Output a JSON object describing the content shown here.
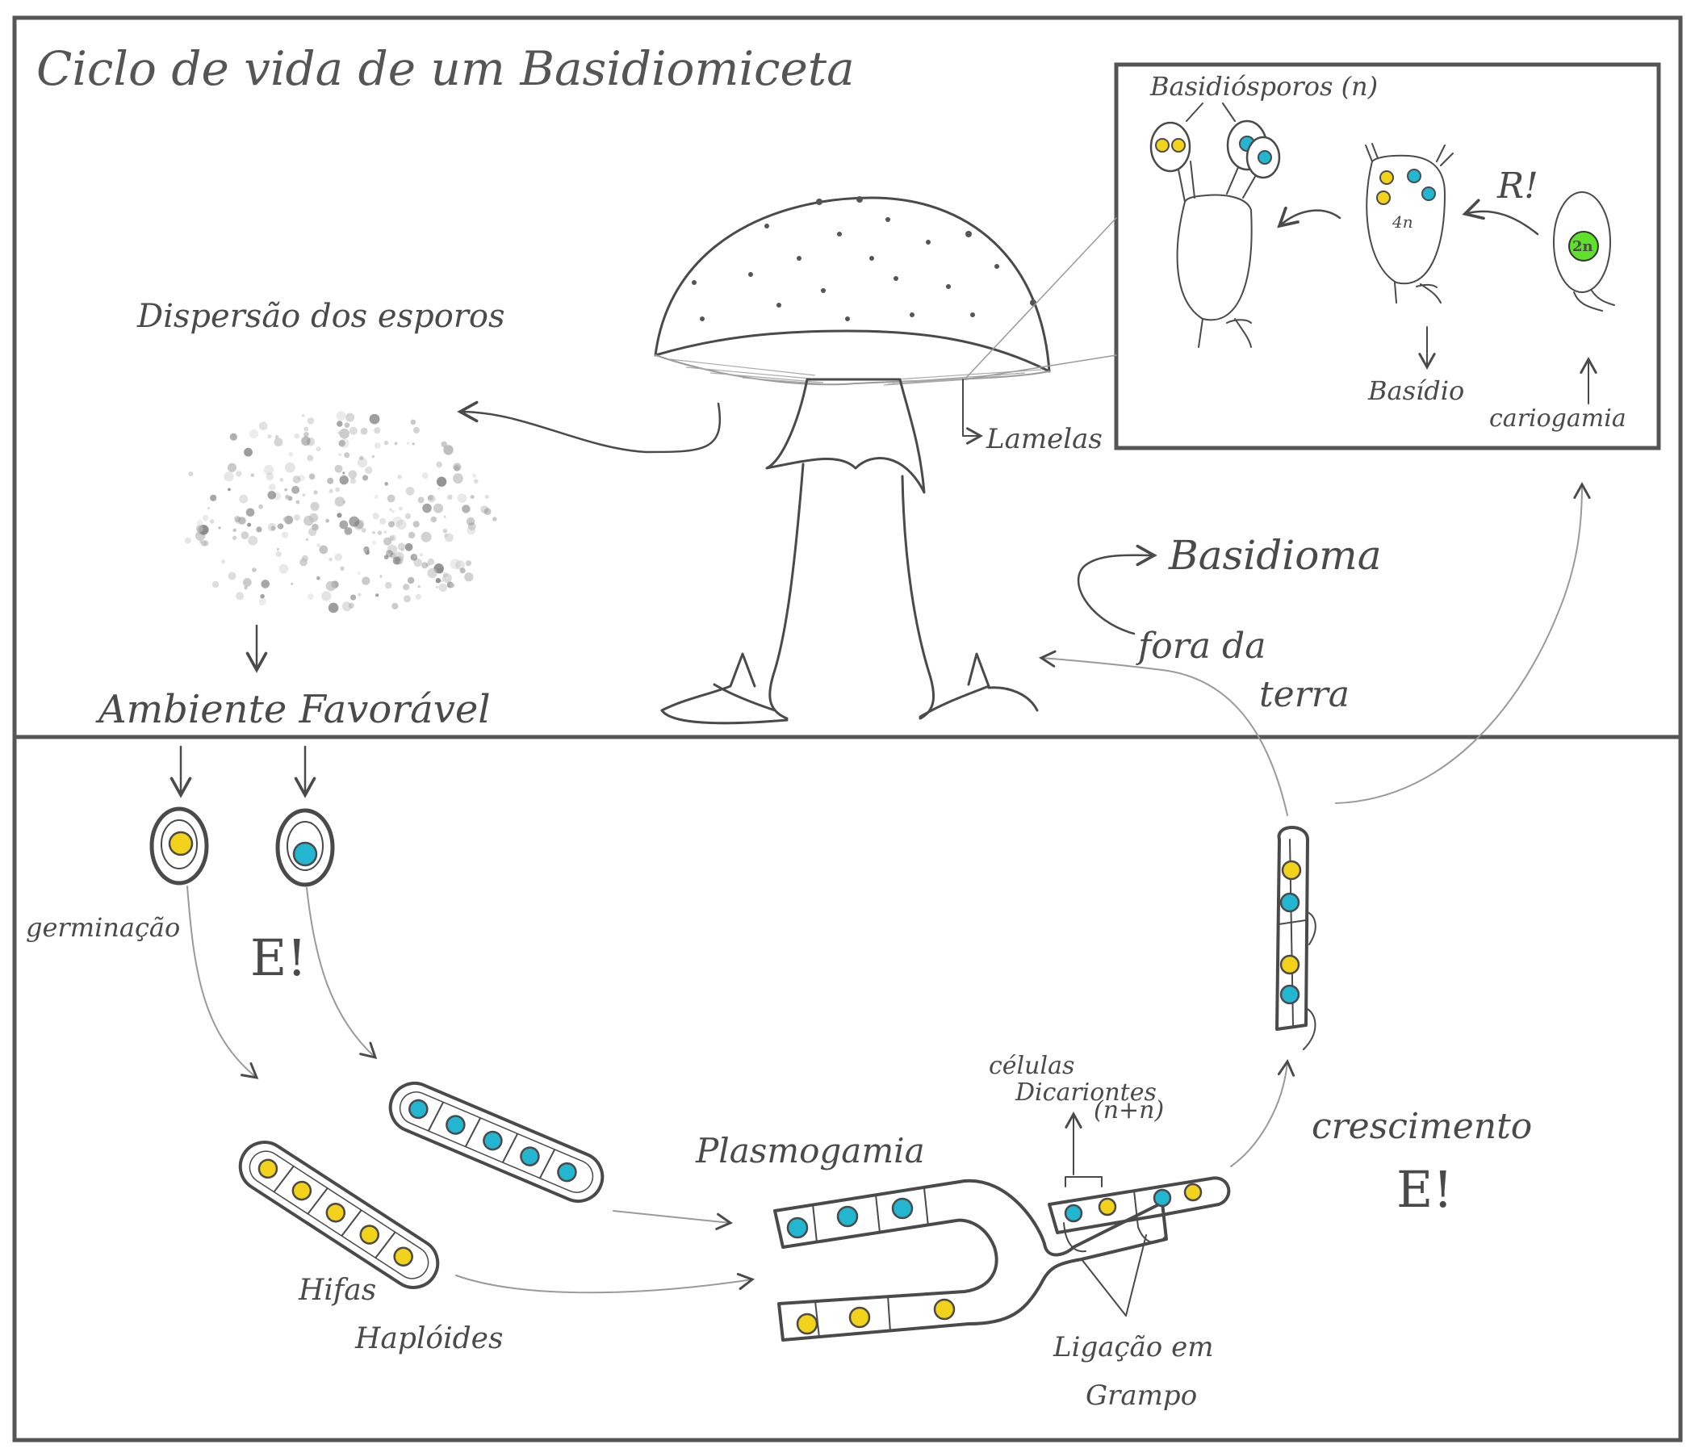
{
  "title": "Ciclo de vida de um Basidiomiceta",
  "labels": {
    "dispersal": "Dispersão dos esporos",
    "environment": "Ambiente Favorável",
    "lamellae": "Lamelas",
    "basidiospores": "Basidiósporos (n)",
    "r_mark": "R!",
    "basidium": "Basídio",
    "karyogamy": "cariogamia",
    "basidioma": "Basidioma",
    "above_ground_1": "fora da",
    "above_ground_2": "terra",
    "germination": "germinação",
    "e_mark_left": "E!",
    "haploid_hyphae_1": "Hifas",
    "haploid_hyphae_2": "Haplóides",
    "plasmogamy": "Plasmogamia",
    "dikaryotic_1": "células",
    "dikaryotic_2": "Dicariontes",
    "dikaryotic_3": "(n+n)",
    "clamp_1": "Ligação em",
    "clamp_2": "Grampo",
    "growth": "crescimento",
    "e_mark_right": "E!",
    "ploidy_2n": "2n",
    "ploidy_n": "4n"
  },
  "colors": {
    "ink": "#4a4a4a",
    "nucleus_yellow": "#f2d21b",
    "nucleus_cyan": "#22b6d1",
    "nucleus_green": "#5fe02a",
    "frame": "#555555"
  }
}
